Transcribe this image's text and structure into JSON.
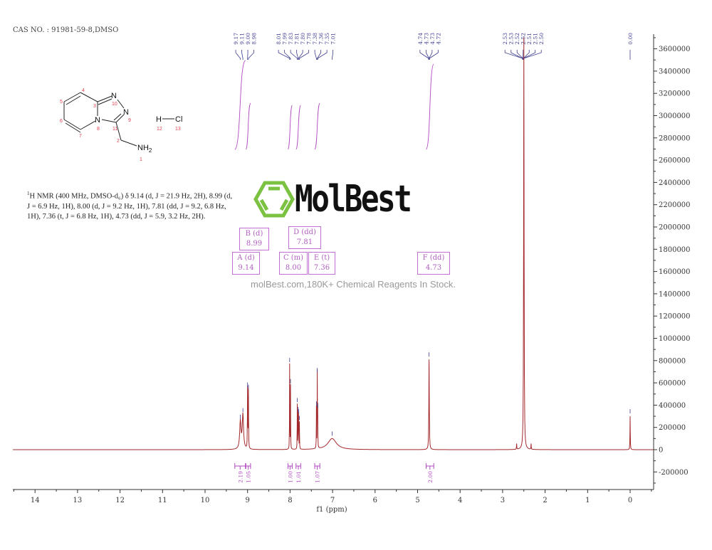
{
  "header": {
    "cas_line": "CAS NO. : 91981-59-8,DMSO"
  },
  "structure": {
    "atoms": {
      "n10": "N",
      "n9": "N",
      "n8": "N",
      "nh2": "NH",
      "nh2_sub": "2",
      "h": "H",
      "cl": "Cl"
    },
    "numbers": [
      "1",
      "2",
      "3",
      "4",
      "5",
      "6",
      "7",
      "8",
      "9",
      "10",
      "11",
      "12",
      "13"
    ]
  },
  "nmr_text": {
    "sup": "1",
    "body": "H NMR (400 MHz, DMSO-d₆) δ 9.14 (d, J = 21.9 Hz, 2H), 8.99 (d, J = 6.9 Hz, 1H), 8.00 (d, J = 9.2 Hz, 1H), 7.81 (dd, J = 9.2, 6.8 Hz, 1H), 7.36 (t, J = 6.8 Hz, 1H), 4.73 (dd, J = 5.9, 3.2 Hz, 2H)."
  },
  "multiplets": [
    {
      "label": "A (d)",
      "shift": "9.14"
    },
    {
      "label": "B (d)",
      "shift": "8.99"
    },
    {
      "label": "C (m)",
      "shift": "8.00"
    },
    {
      "label": "D (dd)",
      "shift": "7.81"
    },
    {
      "label": "E (t)",
      "shift": "7.36"
    },
    {
      "label": "F (dd)",
      "shift": "4.73"
    }
  ],
  "watermark": {
    "brand": "MolBest",
    "tagline": "molBest.com,180K+ Chemical Reagents In Stock."
  },
  "colors": {
    "spectrum": "#a3282c",
    "peak_labels": "#3c3c90",
    "integrals": "#b048c0",
    "logo": "#7cc242"
  },
  "chart_data": {
    "type": "line",
    "title": "",
    "xlabel": "f1 (ppm)",
    "ylabel": "",
    "xlim": [
      14.5,
      -0.5
    ],
    "ylim": [
      -350000,
      3700000
    ],
    "x_reversed": true,
    "x_ticks": [
      14,
      13,
      12,
      11,
      10,
      9,
      8,
      7,
      6,
      5,
      4,
      3,
      2,
      1,
      0
    ],
    "y_ticks": [
      -200000,
      0,
      200000,
      400000,
      600000,
      800000,
      1000000,
      1200000,
      1400000,
      1600000,
      1800000,
      2000000,
      2200000,
      2400000,
      2600000,
      2800000,
      3000000,
      3200000,
      3400000,
      3600000
    ],
    "y_axis_position": "right",
    "grid": false,
    "peaks": [
      {
        "ppm": 9.17,
        "intensity": 250000,
        "hwhm": 0.018
      },
      {
        "ppm": 9.11,
        "intensity": 310000,
        "hwhm": 0.018
      },
      {
        "ppm": 9.0,
        "intensity": 540000,
        "hwhm": 0.004
      },
      {
        "ppm": 8.98,
        "intensity": 520000,
        "hwhm": 0.004
      },
      {
        "ppm": 8.01,
        "intensity": 760000,
        "hwhm": 0.003
      },
      {
        "ppm": 7.99,
        "intensity": 570000,
        "hwhm": 0.003
      },
      {
        "ppm": 7.83,
        "intensity": 400000,
        "hwhm": 0.003
      },
      {
        "ppm": 7.81,
        "intensity": 320000,
        "hwhm": 0.003
      },
      {
        "ppm": 7.8,
        "intensity": 300000,
        "hwhm": 0.003
      },
      {
        "ppm": 7.78,
        "intensity": 240000,
        "hwhm": 0.003
      },
      {
        "ppm": 7.38,
        "intensity": 370000,
        "hwhm": 0.003
      },
      {
        "ppm": 7.36,
        "intensity": 670000,
        "hwhm": 0.003
      },
      {
        "ppm": 7.35,
        "intensity": 350000,
        "hwhm": 0.003
      },
      {
        "ppm": 7.01,
        "intensity": 100000,
        "hwhm": 0.12
      },
      {
        "ppm": 4.73,
        "intensity": 810000,
        "hwhm": 0.006
      },
      {
        "ppm": 2.67,
        "intensity": 50000,
        "hwhm": 0.004
      },
      {
        "ppm": 2.5,
        "intensity": 3700000,
        "hwhm": 0.006
      },
      {
        "ppm": 2.33,
        "intensity": 50000,
        "hwhm": 0.004
      },
      {
        "ppm": 0.0,
        "intensity": 300000,
        "hwhm": 0.004
      }
    ],
    "peak_label_groups": [
      {
        "labels": [
          "9.17",
          "9.11",
          "9.00",
          "8.98"
        ],
        "ppm": [
          9.17,
          9.11,
          9.0,
          8.98
        ]
      },
      {
        "labels": [
          "8.01",
          "7.99",
          "7.83",
          "7.81",
          "7.80",
          "7.78",
          "7.38",
          "7.36",
          "7.35",
          "7.01"
        ],
        "ppm": [
          8.01,
          7.99,
          7.83,
          7.81,
          7.8,
          7.78,
          7.38,
          7.36,
          7.35,
          7.01
        ]
      },
      {
        "labels": [
          "4.74",
          "4.73",
          "4.73",
          "4.72"
        ],
        "ppm": [
          4.74,
          4.73,
          4.73,
          4.72
        ]
      },
      {
        "labels": [
          "2.53",
          "2.53",
          "2.52",
          "2.52",
          "2.51",
          "2.51",
          "2.50"
        ],
        "ppm": [
          2.53,
          2.53,
          2.52,
          2.52,
          2.51,
          2.51,
          2.5
        ]
      },
      {
        "labels": [
          "0.00"
        ],
        "ppm": [
          0.0
        ]
      }
    ],
    "integrals": [
      {
        "from": 9.3,
        "to": 9.05,
        "value": "2.19"
      },
      {
        "from": 9.04,
        "to": 8.93,
        "value": "1.05"
      },
      {
        "from": 8.05,
        "to": 7.95,
        "value": "1.00"
      },
      {
        "from": 7.86,
        "to": 7.75,
        "value": "1.01"
      },
      {
        "from": 7.42,
        "to": 7.3,
        "value": "1.07"
      },
      {
        "from": 4.8,
        "to": 4.62,
        "value": "2.00"
      }
    ]
  }
}
